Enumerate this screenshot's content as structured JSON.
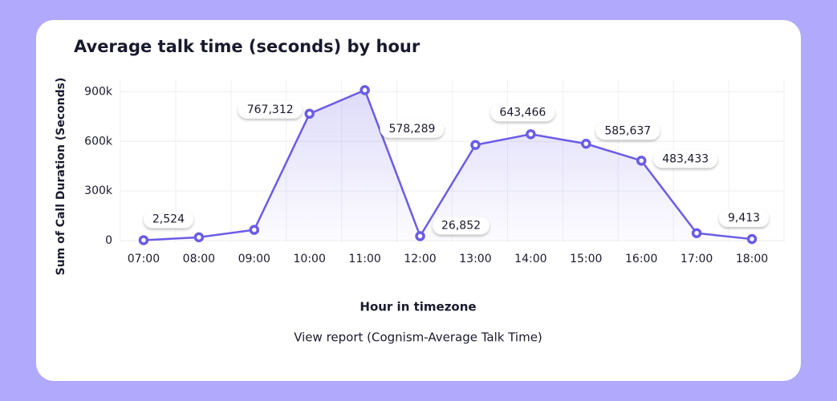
{
  "chart_data": {
    "type": "line",
    "title": "Average talk time (seconds) by hour",
    "x_label": "Hour in timezone",
    "y_label": "Sum of Call Duration (Seconds)",
    "footer_link": "View report (Cognism-Average Talk Time)",
    "categories": [
      "07:00",
      "08:00",
      "09:00",
      "10:00",
      "11:00",
      "12:00",
      "13:00",
      "14:00",
      "15:00",
      "16:00",
      "17:00",
      "18:00"
    ],
    "series": [
      {
        "name": "Sum of Call Duration (Seconds)",
        "color": "#6b5ce7",
        "values": [
          2524,
          20000,
          65000,
          767312,
          910000,
          26852,
          578289,
          643466,
          585637,
          483433,
          45000,
          9413
        ],
        "value_labels": [
          "2,524",
          null,
          null,
          "767,312",
          null,
          "26,852",
          "578,289",
          "643,466",
          "585,637",
          "483,433",
          null,
          "9,413"
        ]
      }
    ],
    "ylim": [
      0,
      970000
    ],
    "yticks": [
      0,
      {
        "value": 300000,
        "label": "300k"
      },
      {
        "value": 600000,
        "label": "600k"
      },
      {
        "value": 900000,
        "label": "900k"
      }
    ],
    "grid": true
  }
}
